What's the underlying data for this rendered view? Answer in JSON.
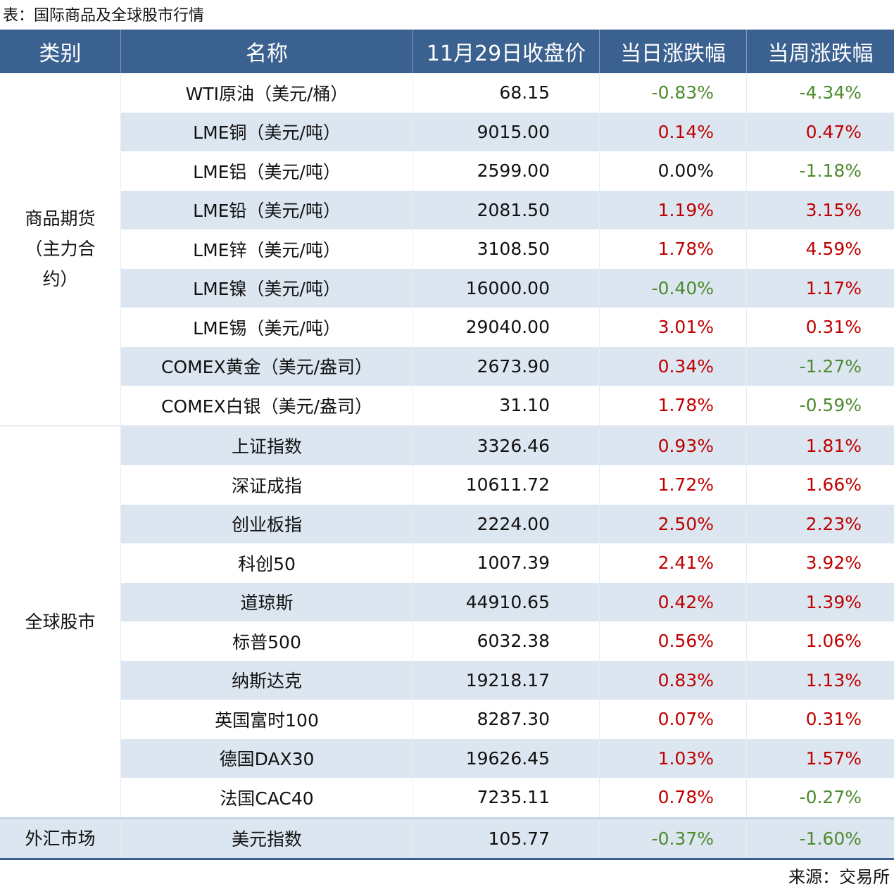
{
  "title": "表：国际商品及全球股市行情",
  "table": {
    "header": [
      "类别",
      "名称",
      "11月29日收盘价",
      "当日涨跌幅",
      "当周涨跌幅"
    ],
    "groups": [
      {
        "category": "商品期货（主力合约）",
        "rows": [
          [
            "WTI原油（美元/桶）",
            "68.15",
            "-0.83%",
            "-4.34%"
          ],
          [
            "LME铜（美元/吨）",
            "9015.00",
            "0.14%",
            "0.47%"
          ],
          [
            "LME铝（美元/吨）",
            "2599.00",
            "0.00%",
            "-1.18%"
          ],
          [
            "LME铅（美元/吨）",
            "2081.50",
            "1.19%",
            "3.15%"
          ],
          [
            "LME锌（美元/吨）",
            "3108.50",
            "1.78%",
            "4.59%"
          ],
          [
            "LME镍（美元/吨）",
            "16000.00",
            "-0.40%",
            "1.17%"
          ],
          [
            "LME锡（美元/吨）",
            "29040.00",
            "3.01%",
            "0.31%"
          ],
          [
            "COMEX黄金（美元/盎司）",
            "2673.90",
            "0.34%",
            "-1.27%"
          ],
          [
            "COMEX白银（美元/盎司）",
            "31.10",
            "1.78%",
            "-0.59%"
          ]
        ]
      },
      {
        "category": "全球股市",
        "rows": [
          [
            "上证指数",
            "3326.46",
            "0.93%",
            "1.81%"
          ],
          [
            "深证成指",
            "10611.72",
            "1.72%",
            "1.66%"
          ],
          [
            "创业板指",
            "2224.00",
            "2.50%",
            "2.23%"
          ],
          [
            "科创50",
            "1007.39",
            "2.41%",
            "3.92%"
          ],
          [
            "道琼斯",
            "44910.65",
            "0.42%",
            "1.39%"
          ],
          [
            "标普500",
            "6032.38",
            "0.56%",
            "1.06%"
          ],
          [
            "纳斯达克",
            "19218.17",
            "0.83%",
            "1.13%"
          ],
          [
            "英国富时100",
            "8287.30",
            "0.07%",
            "0.31%"
          ],
          [
            "德国DAX30",
            "19626.45",
            "1.03%",
            "1.57%"
          ],
          [
            "法国CAC40",
            "7235.11",
            "0.78%",
            "-0.27%"
          ]
        ]
      },
      {
        "category": "外汇市场",
        "rows": [
          [
            "美元指数",
            "105.77",
            "-0.37%",
            "-1.60%"
          ]
        ]
      }
    ]
  },
  "source": "来源：交易所"
}
